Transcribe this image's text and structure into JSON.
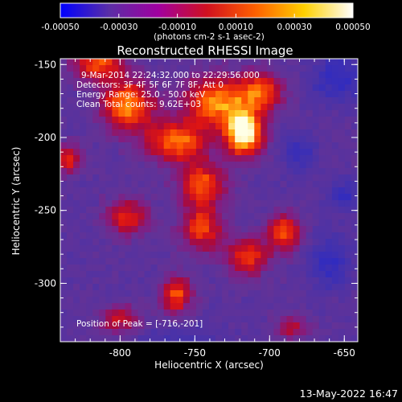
{
  "chart_data": {
    "type": "heatmap",
    "title": "Reconstructed RHESSI Image",
    "colorbar": {
      "min": -0.0005,
      "max": 0.0005,
      "tick_labels": [
        "-0.00050",
        "-0.00030",
        "-0.00010",
        "0.00010",
        "0.00030",
        "0.00050"
      ],
      "units_label": "(photons cm-2 s-1 asec-2)",
      "colors": [
        "#0000ff",
        "#5a2ea6",
        "#a000a0",
        "#d01020",
        "#ff6000",
        "#ffd000",
        "#ffffff"
      ]
    },
    "xlabel": "Heliocentric X (arcsec)",
    "ylabel": "Heliocentric Y (arcsec)",
    "xlim": [
      -840,
      -641
    ],
    "ylim": [
      -340,
      -146
    ],
    "x_ticks": [
      -800,
      -750,
      -700,
      -650
    ],
    "y_ticks": [
      -150,
      -200,
      -250,
      -300
    ],
    "annotations": [
      "9-Mar-2014 22:24:32.000 to 22:29:56.000",
      "Detectors: 3F 4F 5F 6F 7F 8F, Att 0",
      "Energy Range: 25.0 - 50.0 keV",
      "Clean    Total counts: 9.62E+03"
    ],
    "peak_label": "Position of Peak = [-716,-201]",
    "peak": {
      "x": -716,
      "y": -201
    },
    "bright_sources": [
      {
        "x": -717,
        "y": -197,
        "sx": 9,
        "sy": 11,
        "amp": 1.0
      },
      {
        "x": -735,
        "y": -175,
        "sx": 16,
        "sy": 12,
        "amp": 0.7
      },
      {
        "x": -795,
        "y": -178,
        "sx": 12,
        "sy": 12,
        "amp": 0.75
      },
      {
        "x": -762,
        "y": -203,
        "sx": 15,
        "sy": 10,
        "amp": 0.65
      },
      {
        "x": -745,
        "y": -232,
        "sx": 11,
        "sy": 10,
        "amp": 0.6
      },
      {
        "x": -745,
        "y": -262,
        "sx": 10,
        "sy": 11,
        "amp": 0.55
      },
      {
        "x": -795,
        "y": -255,
        "sx": 10,
        "sy": 9,
        "amp": 0.5
      },
      {
        "x": -815,
        "y": -150,
        "sx": 12,
        "sy": 8,
        "amp": 0.6
      },
      {
        "x": -705,
        "y": -168,
        "sx": 10,
        "sy": 9,
        "amp": 0.55
      },
      {
        "x": -690,
        "y": -265,
        "sx": 8,
        "sy": 9,
        "amp": 0.6
      },
      {
        "x": -715,
        "y": -282,
        "sx": 10,
        "sy": 9,
        "amp": 0.55
      },
      {
        "x": -762,
        "y": -308,
        "sx": 7,
        "sy": 9,
        "amp": 0.6
      },
      {
        "x": -800,
        "y": -325,
        "sx": 10,
        "sy": 7,
        "amp": 0.4
      },
      {
        "x": -835,
        "y": -215,
        "sx": 6,
        "sy": 7,
        "amp": 0.5
      },
      {
        "x": -685,
        "y": -330,
        "sx": 8,
        "sy": 6,
        "amp": 0.35
      }
    ],
    "dark_regions": [
      {
        "x": -655,
        "y": -160,
        "sx": 12,
        "sy": 12,
        "amp": 0.6
      },
      {
        "x": -660,
        "y": -285,
        "sx": 10,
        "sy": 12,
        "amp": 0.6
      },
      {
        "x": -760,
        "y": -340,
        "sx": 20,
        "sy": 8,
        "amp": 0.35
      },
      {
        "x": -680,
        "y": -210,
        "sx": 8,
        "sy": 10,
        "amp": 0.5
      },
      {
        "x": -650,
        "y": -240,
        "sx": 8,
        "sy": 8,
        "amp": 0.5
      }
    ]
  },
  "footer_timestamp": "13-May-2022 16:47"
}
